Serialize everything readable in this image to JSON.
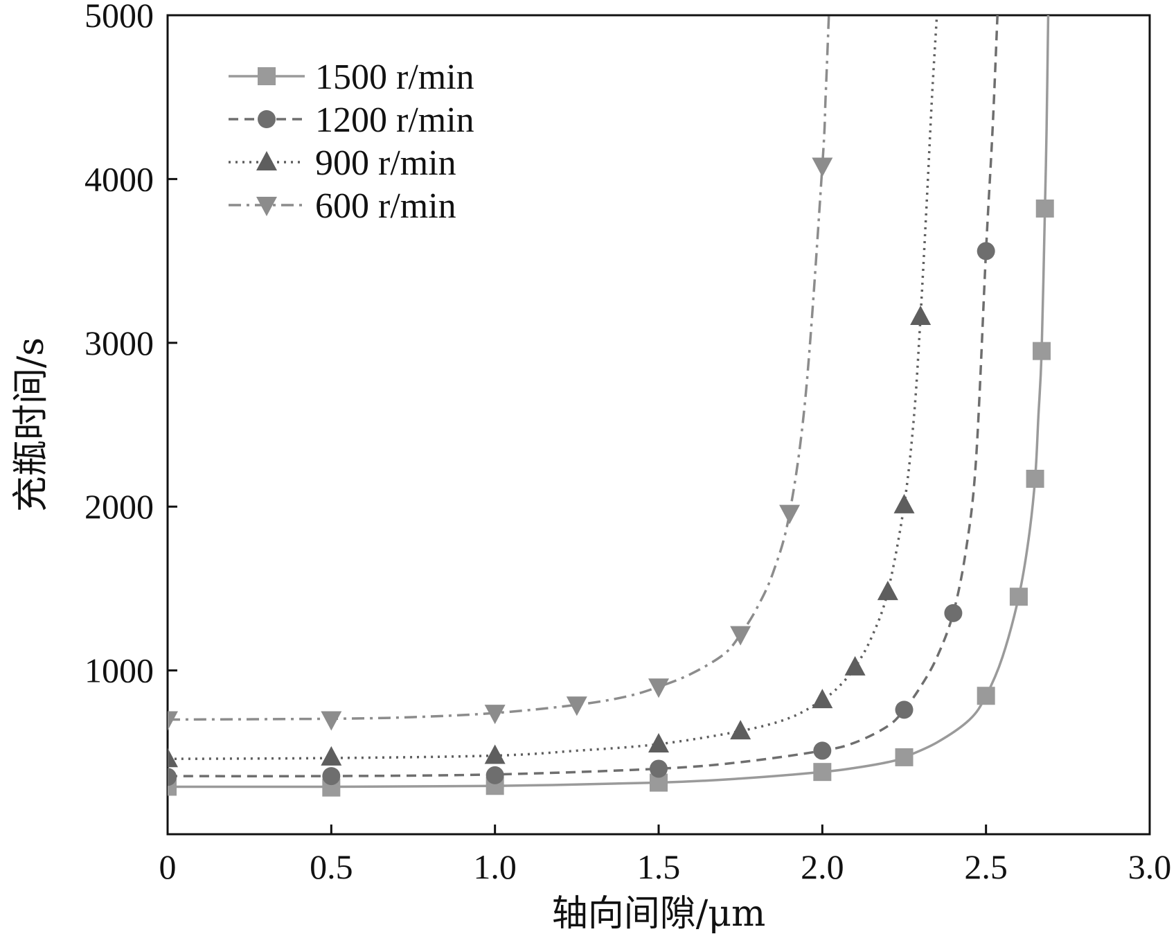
{
  "chart_data": {
    "type": "line",
    "title": "",
    "xlabel": "轴向间隙/μm",
    "ylabel": "充瓶时间/s",
    "xlim": [
      0,
      3.0
    ],
    "ylim": [
      0,
      5000
    ],
    "x_ticks": [
      {
        "value": 0,
        "label": "0"
      },
      {
        "value": 0.5,
        "label": "0.5"
      },
      {
        "value": 1.0,
        "label": "1.0"
      },
      {
        "value": 1.5,
        "label": "1.5"
      },
      {
        "value": 2.0,
        "label": "2.0"
      },
      {
        "value": 2.5,
        "label": "2.5"
      },
      {
        "value": 3.0,
        "label": "3.0"
      }
    ],
    "y_ticks": [
      {
        "value": 1000,
        "label": "1000"
      },
      {
        "value": 2000,
        "label": "2000"
      },
      {
        "value": 3000,
        "label": "3000"
      },
      {
        "value": 4000,
        "label": "4000"
      },
      {
        "value": 5000,
        "label": "5000"
      }
    ],
    "grid": false,
    "legend_position": "top-left",
    "series": [
      {
        "name": "1500 r/min",
        "color": "#9a9a9a",
        "line_style": "solid",
        "marker": "square",
        "markers": [
          [
            0,
            290
          ],
          [
            0.5,
            285
          ],
          [
            1.0,
            295
          ],
          [
            1.5,
            315
          ],
          [
            2.0,
            380
          ],
          [
            2.25,
            470
          ],
          [
            2.5,
            845
          ],
          [
            2.6,
            1450
          ],
          [
            2.65,
            2170
          ],
          [
            2.67,
            2950
          ],
          [
            2.68,
            3820
          ]
        ],
        "curve": [
          [
            0,
            290
          ],
          [
            0.5,
            290
          ],
          [
            1.0,
            295
          ],
          [
            1.5,
            315
          ],
          [
            1.75,
            340
          ],
          [
            2.0,
            380
          ],
          [
            2.1,
            405
          ],
          [
            2.2,
            440
          ],
          [
            2.25,
            470
          ],
          [
            2.35,
            560
          ],
          [
            2.45,
            700
          ],
          [
            2.5,
            845
          ],
          [
            2.55,
            1080
          ],
          [
            2.6,
            1450
          ],
          [
            2.63,
            1800
          ],
          [
            2.65,
            2170
          ],
          [
            2.66,
            2550
          ],
          [
            2.67,
            2950
          ],
          [
            2.68,
            3820
          ],
          [
            2.685,
            4300
          ],
          [
            2.69,
            5000
          ]
        ]
      },
      {
        "name": "1200 r/min",
        "color": "#6e6e6e",
        "line_style": "dashed",
        "marker": "circle",
        "markers": [
          [
            0,
            350
          ],
          [
            0.5,
            355
          ],
          [
            1.0,
            360
          ],
          [
            1.5,
            400
          ],
          [
            2.0,
            510
          ],
          [
            2.25,
            760
          ],
          [
            2.4,
            1350
          ],
          [
            2.5,
            3560
          ]
        ],
        "curve": [
          [
            0,
            355
          ],
          [
            0.5,
            355
          ],
          [
            1.0,
            365
          ],
          [
            1.5,
            400
          ],
          [
            1.75,
            440
          ],
          [
            2.0,
            510
          ],
          [
            2.1,
            560
          ],
          [
            2.2,
            660
          ],
          [
            2.25,
            760
          ],
          [
            2.3,
            900
          ],
          [
            2.35,
            1080
          ],
          [
            2.4,
            1350
          ],
          [
            2.44,
            1750
          ],
          [
            2.47,
            2300
          ],
          [
            2.5,
            3560
          ],
          [
            2.52,
            4300
          ],
          [
            2.535,
            5000
          ]
        ]
      },
      {
        "name": "900 r/min",
        "color": "#5e5e5e",
        "line_style": "dotted",
        "marker": "triangle-up",
        "markers": [
          [
            0,
            460
          ],
          [
            0.5,
            470
          ],
          [
            1.0,
            480
          ],
          [
            1.5,
            550
          ],
          [
            1.75,
            630
          ],
          [
            2.0,
            820
          ],
          [
            2.1,
            1020
          ],
          [
            2.2,
            1480
          ],
          [
            2.25,
            2010
          ],
          [
            2.3,
            3160
          ]
        ],
        "curve": [
          [
            0,
            460
          ],
          [
            0.5,
            465
          ],
          [
            1.0,
            480
          ],
          [
            1.25,
            510
          ],
          [
            1.5,
            550
          ],
          [
            1.75,
            630
          ],
          [
            1.9,
            710
          ],
          [
            2.0,
            820
          ],
          [
            2.05,
            900
          ],
          [
            2.1,
            1020
          ],
          [
            2.15,
            1200
          ],
          [
            2.2,
            1480
          ],
          [
            2.25,
            2010
          ],
          [
            2.28,
            2550
          ],
          [
            2.3,
            3160
          ],
          [
            2.32,
            3900
          ],
          [
            2.335,
            4500
          ],
          [
            2.35,
            5000
          ]
        ]
      },
      {
        "name": "600 r/min",
        "color": "#8c8c8c",
        "line_style": "dashdot",
        "marker": "triangle-down",
        "markers": [
          [
            0,
            700
          ],
          [
            0.5,
            700
          ],
          [
            1.0,
            740
          ],
          [
            1.25,
            790
          ],
          [
            1.5,
            900
          ],
          [
            1.75,
            1220
          ],
          [
            1.9,
            1960
          ],
          [
            2.0,
            4080
          ]
        ],
        "curve": [
          [
            0,
            700
          ],
          [
            0.5,
            705
          ],
          [
            0.75,
            715
          ],
          [
            1.0,
            740
          ],
          [
            1.25,
            790
          ],
          [
            1.4,
            840
          ],
          [
            1.5,
            900
          ],
          [
            1.6,
            980
          ],
          [
            1.7,
            1100
          ],
          [
            1.75,
            1220
          ],
          [
            1.8,
            1380
          ],
          [
            1.85,
            1600
          ],
          [
            1.9,
            1960
          ],
          [
            1.95,
            2700
          ],
          [
            2.0,
            4080
          ],
          [
            2.01,
            4500
          ],
          [
            2.02,
            5000
          ]
        ]
      }
    ]
  }
}
